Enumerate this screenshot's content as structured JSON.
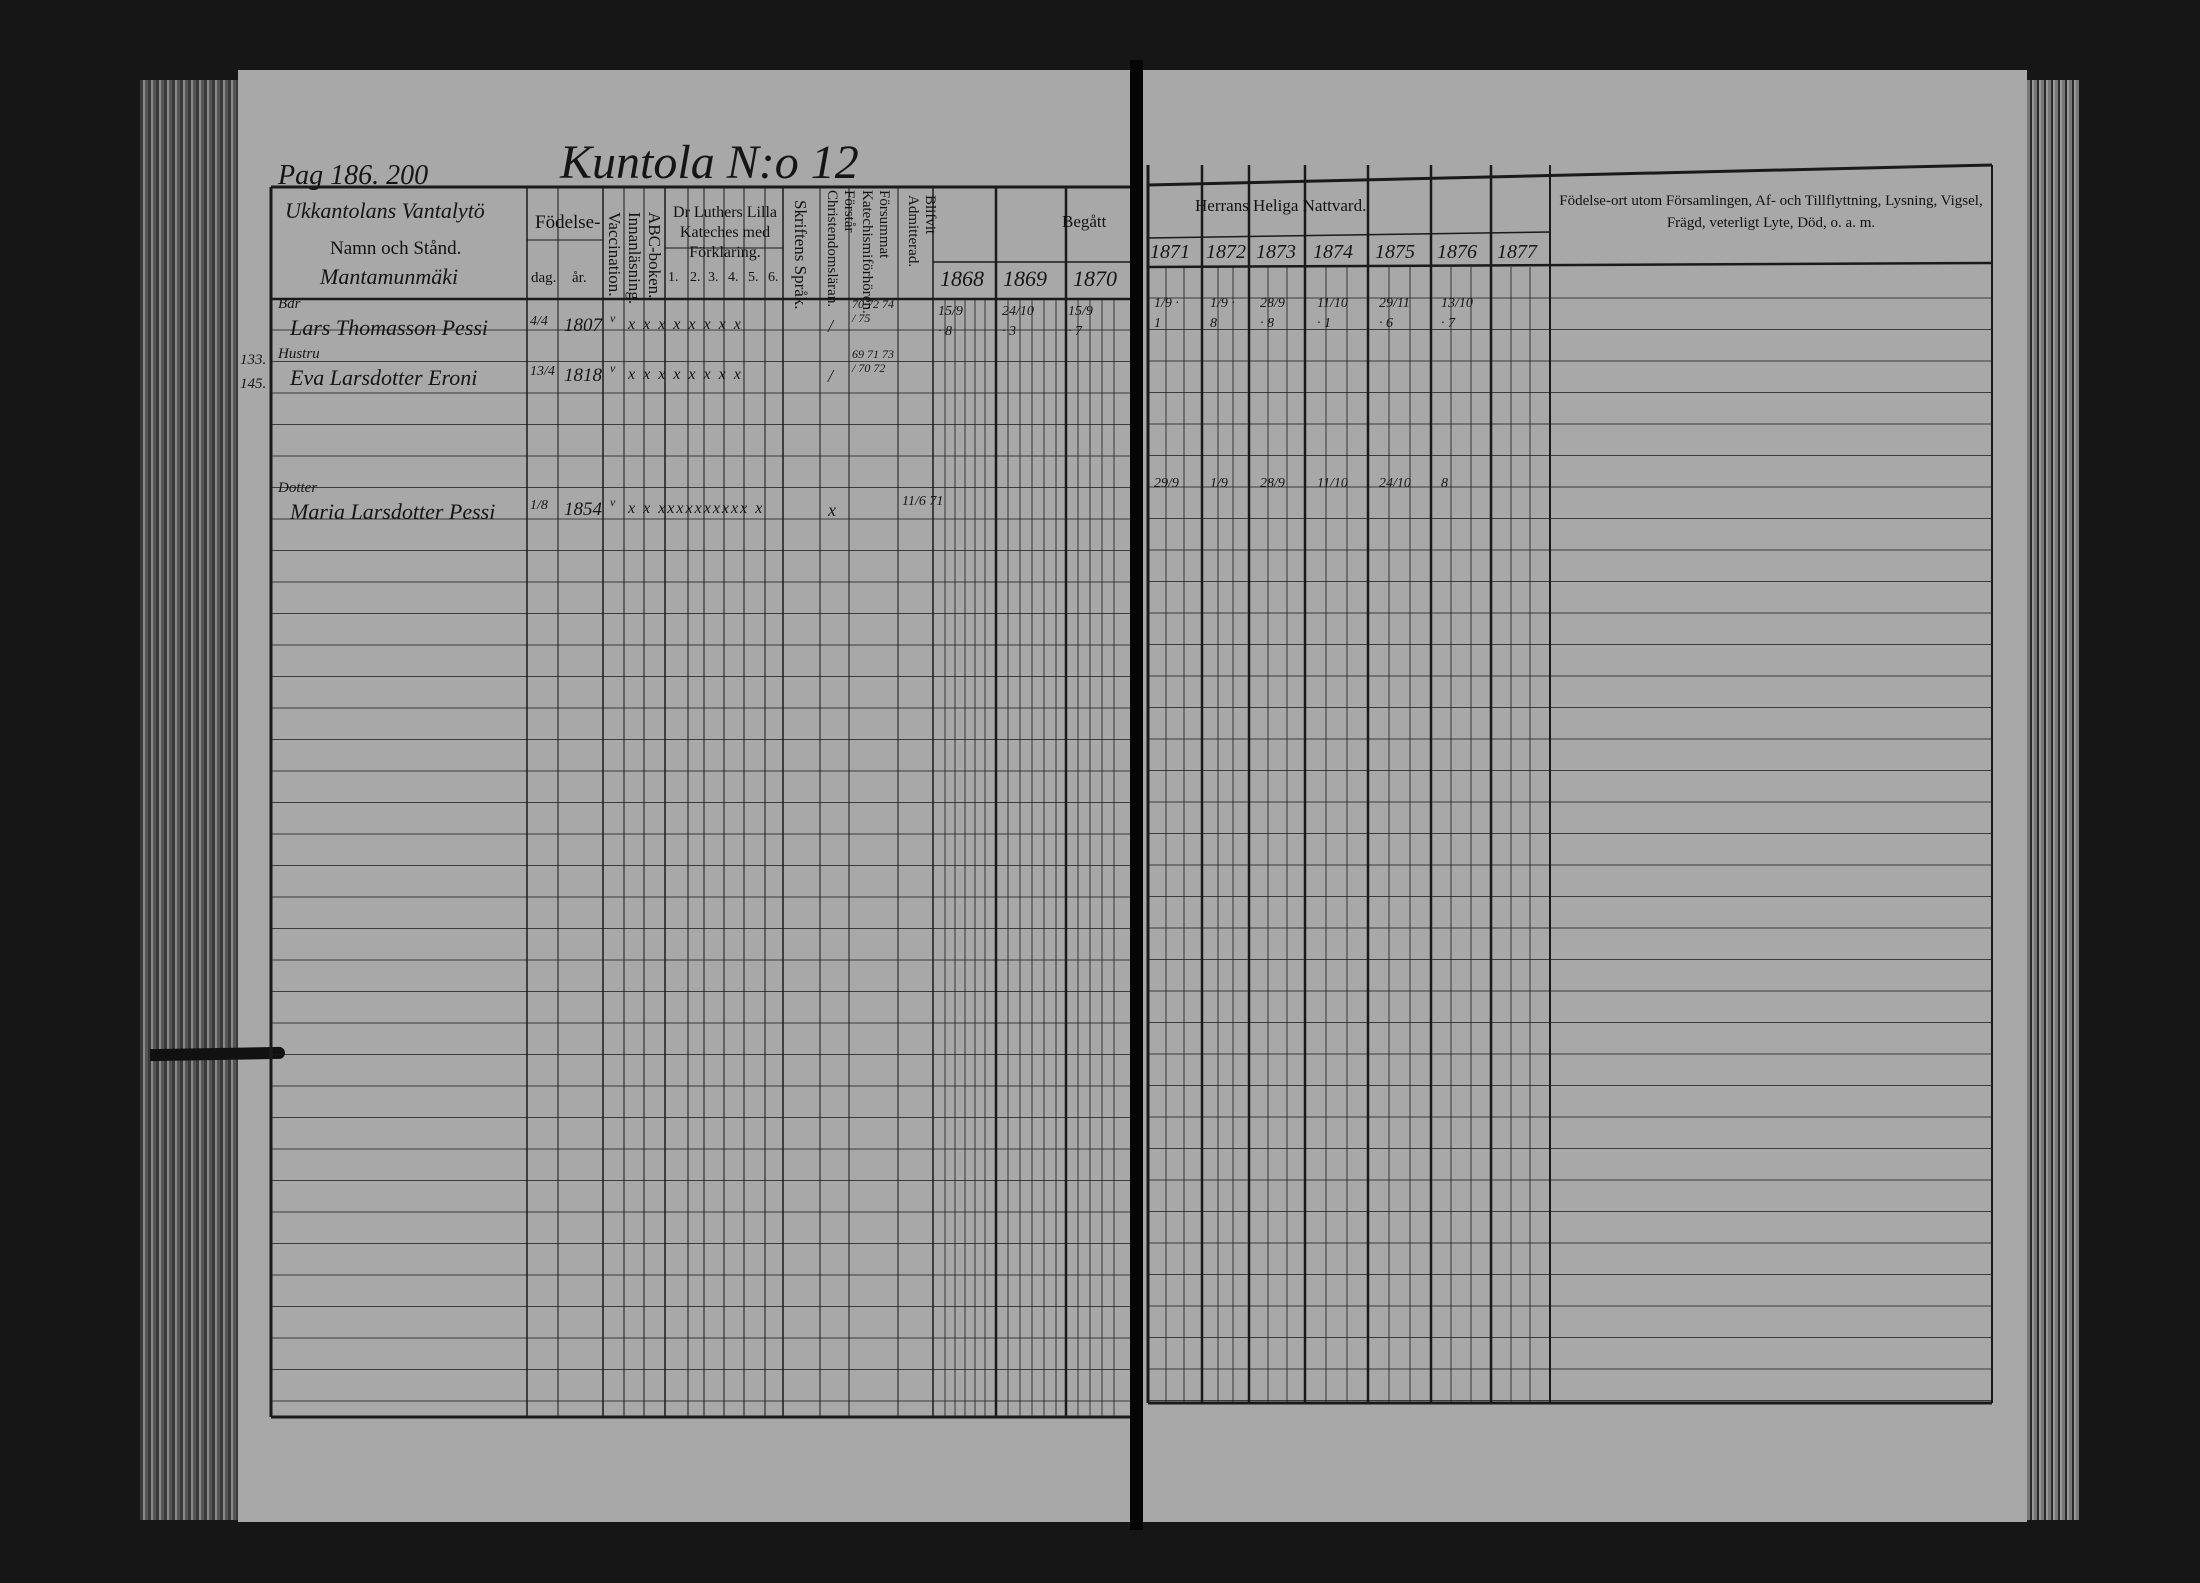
{
  "left_page": {
    "page_ref": "Pag 186. 200",
    "title": "Kuntola N:o 12",
    "header": {
      "name_col_handwritten": "Ukkantolans Vantalytö",
      "name_col_label": "Namn och Stånd.",
      "name_col_place": "Mantamunmäki",
      "birth_label": "Födelse-",
      "birth_day": "dag.",
      "birth_year": "år.",
      "vaccination": "Vaccination.",
      "innanlasning": "Innanläsning.",
      "abc": "ABC-boken.",
      "catechism_label": "Dr Luthers Lilla Kateches med Förklaring.",
      "catechism_parts": [
        "1.",
        "2.",
        "3.",
        "4.",
        "5.",
        "6."
      ],
      "skriftens_sprak": "Skriftens Språk.",
      "forstar": "Förstår Christendomsläran.",
      "forsummat": "Försummat Katechismiförhören.",
      "admitterad": "Blifvit Admitterad.",
      "begatt": "Begått",
      "years": [
        "1868",
        "1869",
        "1870"
      ]
    },
    "margin_numbers": [
      "133.",
      "145."
    ],
    "entries": [
      {
        "role": "Bdr",
        "name": "Lars Thomasson Pessi",
        "day": "4/4",
        "year": "1807",
        "vacc": "v",
        "marks": "x x x x x x x x",
        "skrift": "/",
        "forsummat": "70 72 74 / 75",
        "communion": [
          "15/9 · 8",
          "24/10 · 3",
          "15/9 · 7"
        ]
      },
      {
        "role": "Hustru",
        "name": "Eva Larsdotter Eroni",
        "day": "13/4",
        "year": "1818",
        "vacc": "v",
        "marks": "x x x x x x x x",
        "skrift": "/",
        "forsummat": "69 71 73 / 70 72",
        "communion": []
      },
      {
        "role": "Dotter",
        "name": "Maria Larsdotter Pessi",
        "day": "1/8",
        "year": "1854",
        "vacc": "v",
        "marks": "x x xxxxxxxxxx x",
        "skrift": "x",
        "admitted": "11/6 71",
        "communion": []
      }
    ]
  },
  "right_page": {
    "header": {
      "communion_title": "Herrans Heliga Nattvard.",
      "years": [
        "1871",
        "1872",
        "1873",
        "1874",
        "1875",
        "1876",
        "1877"
      ],
      "remarks_title": "Födelse-ort utom Församlingen, Af- och Tillflyttning, Lysning, Vigsel, Frägd, veterligt Lyte, Död, o. a. m."
    },
    "entries": [
      {
        "communion": [
          "1/9 · 1",
          "1/9 · 8",
          "28/9 · 8",
          "11/10 · 1",
          "29/11 · 6",
          "13/10 · 7",
          ""
        ]
      },
      {
        "communion": [
          "29/9",
          "1/9",
          "28/9",
          "11/10",
          "24/10",
          "8",
          ""
        ]
      }
    ]
  }
}
